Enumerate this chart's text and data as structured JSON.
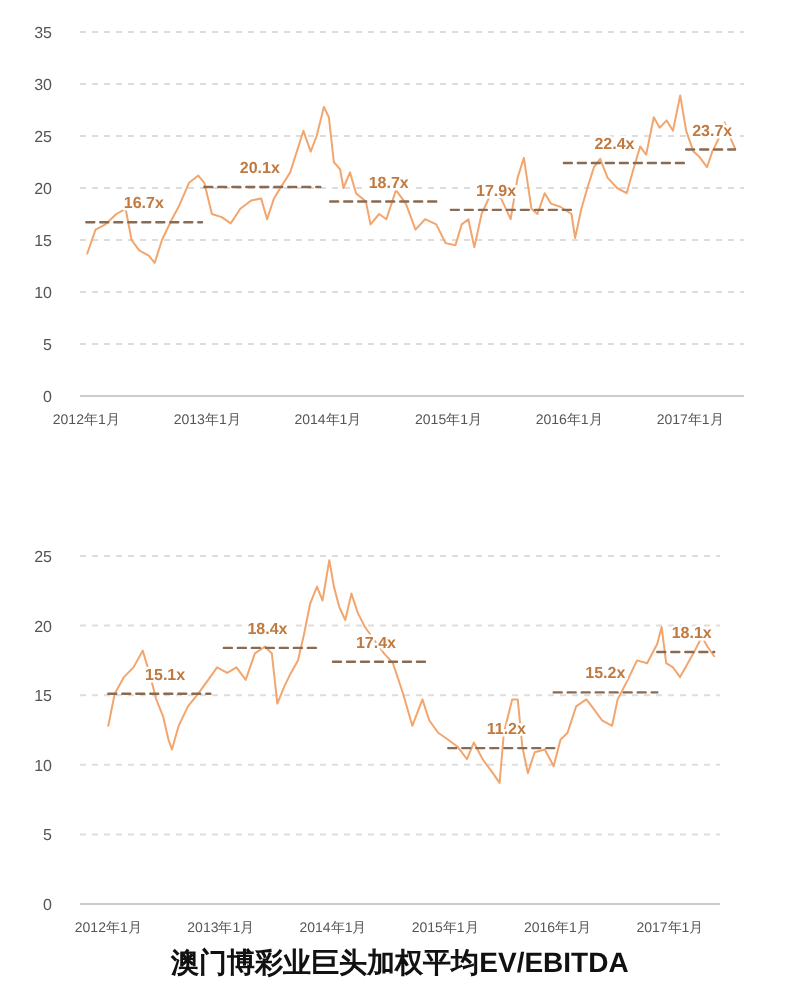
{
  "chart_data": [
    {
      "type": "line",
      "xlim": [
        "2011-12-13",
        "2017-06-13"
      ],
      "ylim": [
        0,
        35
      ],
      "yticks": [
        0,
        5,
        10,
        15,
        20,
        25,
        30,
        35
      ],
      "xticks": [
        {
          "value": "2012-01-01",
          "label": "2012年1月"
        },
        {
          "value": "2013-01-01",
          "label": "2013年1月"
        },
        {
          "value": "2014-01-01",
          "label": "2014年1月"
        },
        {
          "value": "2015-01-01",
          "label": "2015年1月"
        },
        {
          "value": "2016-01-01",
          "label": "2016年1月"
        },
        {
          "value": "2017-01-01",
          "label": "2017年1月"
        }
      ],
      "grid": "y",
      "series": [
        {
          "color": "#f2a66e",
          "x": [
            "2012-01-04",
            "2012-01-29",
            "2012-02-28",
            "2012-04-01",
            "2012-04-29",
            "2012-05-17",
            "2012-06-09",
            "2012-07-08",
            "2012-07-26",
            "2012-08-17",
            "2012-09-16",
            "2012-10-08",
            "2012-11-07",
            "2012-12-05",
            "2012-12-23",
            "2013-01-15",
            "2013-02-14",
            "2013-03-13",
            "2013-04-11",
            "2013-05-14",
            "2013-06-13",
            "2013-07-01",
            "2013-07-22",
            "2013-08-10",
            "2013-09-09",
            "2013-10-19",
            "2013-11-10",
            "2013-11-28",
            "2013-12-20",
            "2014-01-04",
            "2014-01-19",
            "2014-02-07",
            "2014-02-17",
            "2014-03-09",
            "2014-03-27",
            "2014-04-26",
            "2014-05-10",
            "2014-06-05",
            "2014-06-27",
            "2014-07-26",
            "2014-08-25",
            "2014-09-23",
            "2014-10-22",
            "2014-11-25",
            "2014-12-23",
            "2015-01-22",
            "2015-02-10",
            "2015-03-02",
            "2015-03-20",
            "2015-04-11",
            "2015-05-10",
            "2015-06-09",
            "2015-07-08",
            "2015-07-29",
            "2015-08-17",
            "2015-09-09",
            "2015-09-27",
            "2015-10-19",
            "2015-11-07",
            "2015-12-05",
            "2016-01-08",
            "2016-01-19",
            "2016-02-07",
            "2016-02-25",
            "2016-03-16",
            "2016-04-04",
            "2016-04-26",
            "2016-05-25",
            "2016-06-23",
            "2016-07-15",
            "2016-08-03",
            "2016-08-21",
            "2016-09-13",
            "2016-10-01",
            "2016-10-22",
            "2016-11-10",
            "2016-12-02",
            "2016-12-20",
            "2017-01-11",
            "2017-01-29",
            "2017-02-21",
            "2017-03-09",
            "2017-04-01",
            "2017-04-15",
            "2017-05-03",
            "2017-05-17"
          ],
          "values": [
            13.7,
            16,
            16.5,
            17.5,
            18,
            15,
            14,
            13.5,
            12.8,
            15,
            17,
            18.3,
            20.5,
            21.2,
            20.5,
            17.5,
            17.2,
            16.6,
            18,
            18.8,
            19,
            17,
            19,
            20,
            21.5,
            25.5,
            23.5,
            25,
            27.8,
            26.8,
            22.5,
            21.8,
            20,
            21.5,
            19.5,
            18.7,
            16.5,
            17.5,
            17,
            19.8,
            18.5,
            16,
            17,
            16.5,
            14.7,
            14.5,
            16.5,
            17,
            14.3,
            17.5,
            19.5,
            19,
            17,
            21,
            22.9,
            18,
            17.5,
            19.5,
            18.5,
            18.2,
            17.5,
            15.2,
            18,
            20,
            22,
            22.8,
            21,
            20,
            19.5,
            22,
            24,
            23.2,
            26.8,
            25.8,
            26.5,
            25.5,
            28.9,
            25.5,
            23.5,
            23,
            22,
            23.5,
            25,
            26.3,
            24.8,
            23.8
          ]
        },
        {
          "color": "#8a6a50",
          "line_style": "dashed",
          "x": [
            "2012-01-01",
            "2012-12-16"
          ],
          "values": [
            16.7,
            16.7
          ]
        },
        {
          "color": "#8a6a50",
          "line_style": "dashed",
          "x": [
            "2012-12-23",
            "2013-12-09"
          ],
          "values": [
            20.1,
            20.1
          ]
        },
        {
          "color": "#8a6a50",
          "line_style": "dashed",
          "x": [
            "2014-01-08",
            "2014-12-02"
          ],
          "values": [
            18.7,
            18.7
          ]
        },
        {
          "color": "#8a6a50",
          "line_style": "dashed",
          "x": [
            "2015-01-08",
            "2016-01-19"
          ],
          "values": [
            17.9,
            17.9
          ]
        },
        {
          "color": "#8a6a50",
          "line_style": "dashed",
          "x": [
            "2015-12-16",
            "2016-12-13"
          ],
          "values": [
            22.4,
            22.4
          ]
        },
        {
          "color": "#8a6a50",
          "line_style": "dashed",
          "x": [
            "2016-12-20",
            "2017-05-17"
          ],
          "values": [
            23.7,
            23.7
          ]
        }
      ],
      "annotations": [
        {
          "text": "16.7x",
          "x": "2012-06-23",
          "y": 16.7
        },
        {
          "text": "20.1x",
          "x": "2013-06-09",
          "y": 20.1
        },
        {
          "text": "18.7x",
          "x": "2014-07-04",
          "y": 18.7
        },
        {
          "text": "17.9x",
          "x": "2015-05-25",
          "y": 17.9
        },
        {
          "text": "22.4x",
          "x": "2016-05-17",
          "y": 22.4
        },
        {
          "text": "23.7x",
          "x": "2017-03-09",
          "y": 23.7
        }
      ]
    },
    {
      "type": "line",
      "title": "澳门博彩业巨头加权平均EV/EBITDA",
      "xlim": [
        "2011-10-01",
        "2017-06-13"
      ],
      "ylim": [
        0,
        25
      ],
      "yticks": [
        0,
        5,
        10,
        15,
        20,
        25
      ],
      "xticks": [
        {
          "value": "2012-01-01",
          "label": "2012年1月"
        },
        {
          "value": "2013-01-01",
          "label": "2013年1月"
        },
        {
          "value": "2014-01-01",
          "label": "2014年1月"
        },
        {
          "value": "2015-01-01",
          "label": "2015年1月"
        },
        {
          "value": "2016-01-01",
          "label": "2016年1月"
        },
        {
          "value": "2017-01-01",
          "label": "2017年1月"
        }
      ],
      "grid": "y",
      "series": [
        {
          "color": "#f2a66e",
          "x": [
            "2012-01-01",
            "2012-01-22",
            "2012-02-21",
            "2012-03-23",
            "2012-04-22",
            "2012-05-14",
            "2012-06-05",
            "2012-06-27",
            "2012-07-15",
            "2012-07-26",
            "2012-08-17",
            "2012-09-16",
            "2012-10-19",
            "2012-11-21",
            "2012-12-20",
            "2013-01-22",
            "2013-02-21",
            "2013-03-23",
            "2013-04-22",
            "2013-05-25",
            "2013-06-16",
            "2013-07-04",
            "2013-07-26",
            "2013-08-17",
            "2013-09-09",
            "2013-09-27",
            "2013-10-19",
            "2013-11-10",
            "2013-11-28",
            "2013-12-20",
            "2014-01-04",
            "2014-01-22",
            "2014-02-10",
            "2014-03-02",
            "2014-03-23",
            "2014-04-15",
            "2014-05-14",
            "2014-06-16",
            "2014-07-15",
            "2014-08-17",
            "2014-09-16",
            "2014-10-19",
            "2014-11-10",
            "2014-12-09",
            "2015-01-11",
            "2015-02-10",
            "2015-03-13",
            "2015-04-04",
            "2015-05-03",
            "2015-06-05",
            "2015-06-27",
            "2015-07-11",
            "2015-08-07",
            "2015-08-25",
            "2015-09-09",
            "2015-09-27",
            "2015-10-19",
            "2015-11-21",
            "2015-12-20",
            "2016-01-11",
            "2016-02-03",
            "2016-03-02",
            "2016-04-04",
            "2016-04-22",
            "2016-05-25",
            "2016-06-27",
            "2016-07-15",
            "2016-08-17",
            "2016-09-16",
            "2016-10-19",
            "2016-11-21",
            "2016-12-05",
            "2016-12-20",
            "2017-01-11",
            "2017-02-03",
            "2017-02-21",
            "2017-03-23",
            "2017-04-15",
            "2017-05-03",
            "2017-05-25"
          ],
          "values": [
            12.8,
            15.1,
            16.3,
            17,
            18.2,
            16.6,
            14.7,
            13.5,
            11.8,
            11.1,
            12.8,
            14.2,
            15.1,
            16.1,
            17,
            16.6,
            17,
            16.1,
            18,
            18.5,
            18,
            14.4,
            15.6,
            16.6,
            17.5,
            19.2,
            21.6,
            22.8,
            21.8,
            24.7,
            22.8,
            21.3,
            20.4,
            22.3,
            20.9,
            19.9,
            19,
            18,
            17.3,
            15.1,
            12.8,
            14.7,
            13.2,
            12.3,
            11.8,
            11.3,
            10.4,
            11.6,
            10.4,
            9.4,
            8.7,
            12.3,
            14.7,
            14.7,
            11.3,
            9.4,
            10.9,
            11.1,
            9.9,
            11.8,
            12.3,
            14.2,
            14.7,
            14.2,
            13.2,
            12.8,
            14.7,
            16.1,
            17.5,
            17.3,
            18.7,
            19.9,
            17.3,
            17,
            16.3,
            17,
            18.2,
            19.2,
            18.5,
            17.8
          ]
        },
        {
          "color": "#8a6a50",
          "line_style": "dashed",
          "x": [
            "2012-01-01",
            "2012-11-28"
          ],
          "values": [
            15.1,
            15.1
          ]
        },
        {
          "color": "#8a6a50",
          "line_style": "dashed",
          "x": [
            "2013-01-11",
            "2013-11-21"
          ],
          "values": [
            18.4,
            18.4
          ]
        },
        {
          "color": "#8a6a50",
          "line_style": "dashed",
          "x": [
            "2014-01-01",
            "2014-11-10"
          ],
          "values": [
            17.4,
            17.4
          ]
        },
        {
          "color": "#8a6a50",
          "line_style": "dashed",
          "x": [
            "2015-01-11",
            "2016-01-01"
          ],
          "values": [
            11.2,
            11.2
          ]
        },
        {
          "color": "#8a6a50",
          "line_style": "dashed",
          "x": [
            "2015-12-20",
            "2016-11-21"
          ],
          "values": [
            15.2,
            15.2
          ]
        },
        {
          "color": "#8a6a50",
          "line_style": "dashed",
          "x": [
            "2016-11-21",
            "2017-05-25"
          ],
          "values": [
            18.1,
            18.1
          ]
        }
      ],
      "annotations": [
        {
          "text": "15.1x",
          "x": "2012-07-04",
          "y": 15.1
        },
        {
          "text": "18.4x",
          "x": "2013-06-02",
          "y": 18.4
        },
        {
          "text": "17.4x",
          "x": "2014-05-21",
          "y": 17.4
        },
        {
          "text": "11.2x",
          "x": "2015-07-19",
          "y": 11.2
        },
        {
          "text": "15.2x",
          "x": "2016-06-05",
          "y": 15.2
        },
        {
          "text": "18.1x",
          "x": "2017-03-13",
          "y": 18.1
        }
      ]
    }
  ]
}
